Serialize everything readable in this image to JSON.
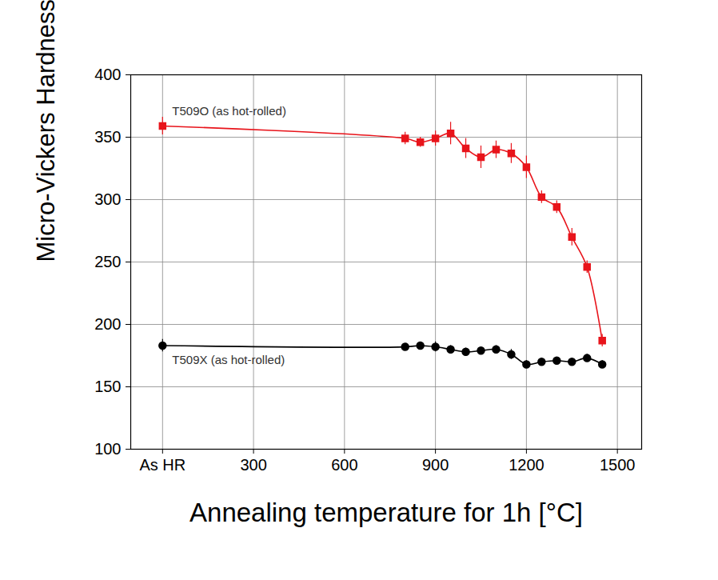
{
  "chart_data": {
    "type": "line",
    "x_label": "Annealing temperature for 1h [°C]",
    "y_label": "Micro-Vickers Hardness, Hv",
    "x": [
      0,
      800,
      850,
      900,
      950,
      1000,
      1050,
      1100,
      1150,
      1200,
      1250,
      1300,
      1350,
      1400,
      1450
    ],
    "series": [
      {
        "name": "T509O (as hot-rolled)",
        "color": "#e8141b",
        "marker": "square",
        "line_style": "solid",
        "values": [
          359,
          349,
          346,
          349,
          353,
          341,
          334,
          340,
          337,
          326,
          302,
          294,
          270,
          246,
          187
        ],
        "errors": [
          7,
          5,
          4,
          6,
          9,
          8,
          9,
          7,
          8,
          9,
          5,
          5,
          7,
          5,
          5
        ]
      },
      {
        "name": "T509X (as hot-rolled)",
        "color": "#000000",
        "marker": "circle",
        "line_style": "solid",
        "values": [
          183,
          182,
          183,
          182,
          180,
          178,
          179,
          180,
          176,
          168,
          170,
          171,
          170,
          173,
          168
        ],
        "errors": [
          5,
          2,
          2,
          4,
          3,
          3,
          2,
          3,
          4,
          3,
          3,
          2,
          2,
          3,
          3
        ]
      }
    ],
    "xlim": [
      -105,
      1580
    ],
    "xticks": [
      {
        "value": 0,
        "label": "As HR"
      },
      300,
      600,
      900,
      1200,
      1500
    ],
    "ylim": [
      100,
      400
    ],
    "yticks": [
      100,
      150,
      200,
      250,
      300,
      350,
      400
    ],
    "grid": true,
    "legend": false
  }
}
